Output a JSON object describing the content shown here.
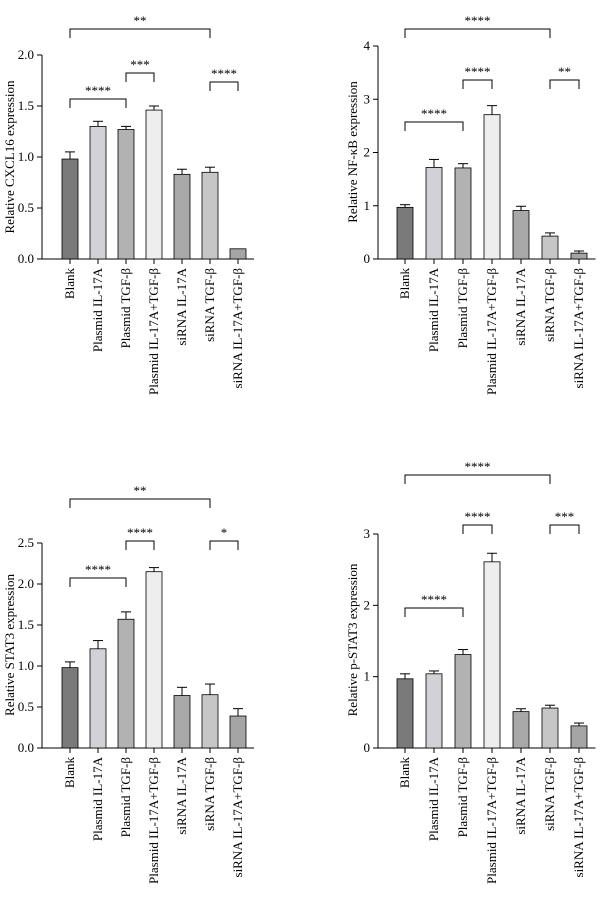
{
  "chart_data": [
    {
      "type": "bar",
      "ylabel": "Relative CXCL16 expression",
      "categories": [
        "Blank",
        "Plasmid IL-17A",
        "Plasmid TGF-β",
        "Plasmid IL-17A+TGF-β",
        "siRNA IL-17A",
        "siRNA TGF-β",
        "siRNA IL-17A+TGF-β"
      ],
      "values": [
        0.98,
        1.3,
        1.27,
        1.46,
        0.83,
        0.85,
        0.1
      ],
      "errors": [
        0.07,
        0.05,
        0.03,
        0.04,
        0.05,
        0.05,
        0.0
      ],
      "ylim": [
        0,
        2.0
      ],
      "yticks": [
        "0.0",
        "0.5",
        "1.0",
        "1.5",
        "2.0"
      ],
      "ytick_values": [
        0,
        0.5,
        1.0,
        1.5,
        2.0
      ],
      "brackets": [
        {
          "from": 0,
          "to": 5,
          "label": "**"
        },
        {
          "from": 0,
          "to": 2,
          "label": "****"
        },
        {
          "from": 2,
          "to": 3,
          "label": "***"
        },
        {
          "from": 5,
          "to": 6,
          "label": "****"
        }
      ]
    },
    {
      "type": "bar",
      "ylabel": "Relative NF-κB expression",
      "categories": [
        "Blank",
        "Plasmid IL-17A",
        "Plasmid TGF-β",
        "Plasmid IL-17A+TGF-β",
        "siRNA IL-17A",
        "siRNA TGF-β",
        "siRNA IL-17A+TGF-β"
      ],
      "values": [
        0.97,
        1.72,
        1.71,
        2.71,
        0.91,
        0.43,
        0.11
      ],
      "errors": [
        0.05,
        0.15,
        0.08,
        0.17,
        0.08,
        0.06,
        0.04
      ],
      "ylim": [
        0,
        4
      ],
      "yticks": [
        "0",
        "1",
        "2",
        "3",
        "4"
      ],
      "ytick_values": [
        0,
        1,
        2,
        3,
        4
      ],
      "brackets": [
        {
          "from": 0,
          "to": 5,
          "label": "****"
        },
        {
          "from": 0,
          "to": 2,
          "label": "****"
        },
        {
          "from": 2,
          "to": 3,
          "label": "****"
        },
        {
          "from": 5,
          "to": 6,
          "label": "**"
        }
      ]
    },
    {
      "type": "bar",
      "ylabel": "Relative STAT3 expression",
      "categories": [
        "Blank",
        "Plasmid IL-17A",
        "Plasmid TGF-β",
        "Plasmid IL-17A+TGF-β",
        "siRNA IL-17A",
        "siRNA TGF-β",
        "siRNA IL-17A+TGF-β"
      ],
      "values": [
        0.98,
        1.21,
        1.57,
        2.15,
        0.64,
        0.65,
        0.39
      ],
      "errors": [
        0.07,
        0.1,
        0.09,
        0.05,
        0.1,
        0.13,
        0.09
      ],
      "ylim": [
        0,
        2.5
      ],
      "yticks": [
        "0.0",
        "0.5",
        "1.0",
        "1.5",
        "2.0",
        "2.5"
      ],
      "ytick_values": [
        0,
        0.5,
        1.0,
        1.5,
        2.0,
        2.5
      ],
      "brackets": [
        {
          "from": 0,
          "to": 5,
          "label": "**"
        },
        {
          "from": 0,
          "to": 2,
          "label": "****"
        },
        {
          "from": 2,
          "to": 3,
          "label": "****"
        },
        {
          "from": 5,
          "to": 6,
          "label": "*"
        }
      ]
    },
    {
      "type": "bar",
      "ylabel": "Relative p-STAT3 expression",
      "categories": [
        "Blank",
        "Plasmid IL-17A",
        "Plasmid TGF-β",
        "Plasmid IL-17A+TGF-β",
        "siRNA IL-17A",
        "siRNA TGF-β",
        "siRNA IL-17A+TGF-β"
      ],
      "values": [
        0.97,
        1.04,
        1.31,
        2.61,
        0.51,
        0.56,
        0.31
      ],
      "errors": [
        0.07,
        0.04,
        0.07,
        0.12,
        0.04,
        0.04,
        0.04
      ],
      "ylim": [
        0,
        3
      ],
      "yticks": [
        "0",
        "1",
        "2",
        "3"
      ],
      "ytick_values": [
        0,
        1,
        2,
        3
      ],
      "brackets": [
        {
          "from": 0,
          "to": 5,
          "label": "****"
        },
        {
          "from": 0,
          "to": 2,
          "label": "****"
        },
        {
          "from": 2,
          "to": 3,
          "label": "****"
        },
        {
          "from": 5,
          "to": 6,
          "label": "***"
        }
      ]
    }
  ],
  "bar_colors": [
    "#7a7a7a",
    "#d2d2d6",
    "#b2b2b2",
    "#eeeeee",
    "#a8a8a8",
    "#c6c6c6",
    "#a5a5a5"
  ]
}
